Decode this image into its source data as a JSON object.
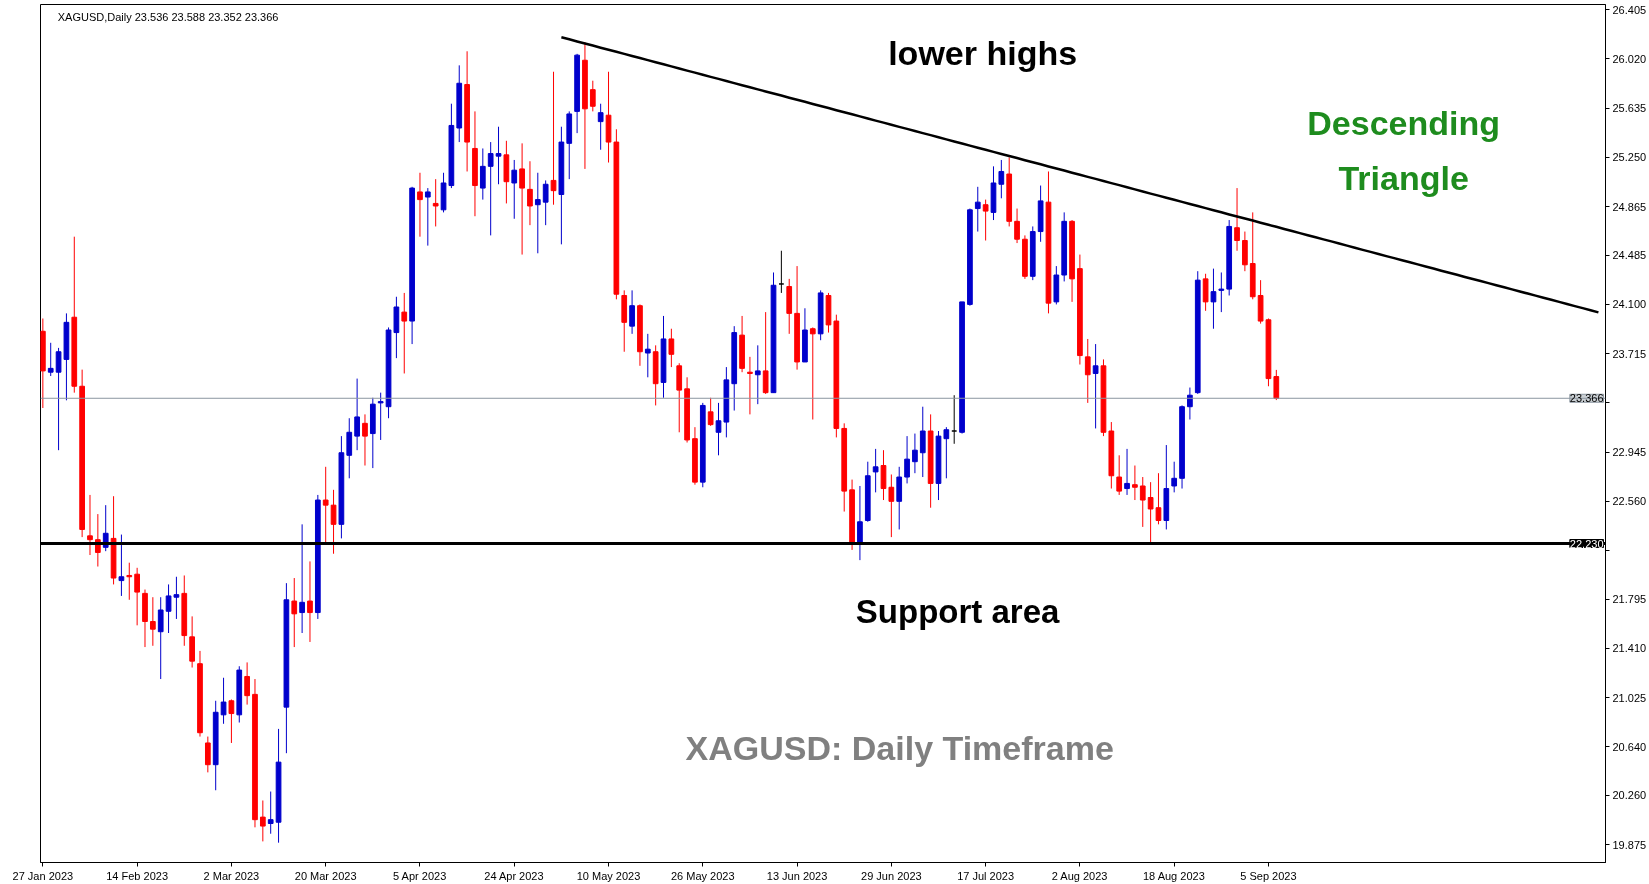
{
  "chart_data": {
    "type": "candlestick",
    "title": "XAGUSD,Daily  23.536 23.588 23.352 23.366",
    "categories": [
      "27 Jan 2023",
      null,
      null,
      null,
      null,
      null,
      null,
      null,
      null,
      null,
      null,
      null,
      "14 Feb 2023",
      null,
      null,
      null,
      null,
      null,
      null,
      null,
      null,
      null,
      null,
      null,
      "2 Mar 2023",
      null,
      null,
      null,
      null,
      null,
      null,
      null,
      null,
      null,
      null,
      null,
      "20 Mar 2023",
      null,
      null,
      null,
      null,
      null,
      null,
      null,
      null,
      null,
      null,
      null,
      "5 Apr 2023",
      null,
      null,
      null,
      null,
      null,
      null,
      null,
      null,
      null,
      null,
      null,
      "24 Apr 2023",
      null,
      null,
      null,
      null,
      null,
      null,
      null,
      null,
      null,
      null,
      null,
      "10 May 2023",
      null,
      null,
      null,
      null,
      null,
      null,
      null,
      null,
      null,
      null,
      null,
      "26 May 2023",
      null,
      null,
      null,
      null,
      null,
      null,
      null,
      null,
      null,
      null,
      null,
      "13 Jun 2023",
      null,
      null,
      null,
      null,
      null,
      null,
      null,
      null,
      null,
      null,
      null,
      "29 Jun 2023",
      null,
      null,
      null,
      null,
      null,
      null,
      null,
      null,
      null,
      null,
      null,
      "17 Jul 2023",
      null,
      null,
      null,
      null,
      null,
      null,
      null,
      null,
      null,
      null,
      null,
      "2 Aug 2023",
      null,
      null,
      null,
      null,
      null,
      null,
      null,
      null,
      null,
      null,
      null,
      "18 Aug 2023",
      null,
      null,
      null,
      null,
      null,
      null,
      null,
      null,
      null,
      null,
      null,
      "5 Sep 2023",
      null,
      null,
      null,
      null,
      null,
      null,
      null,
      null,
      null,
      null,
      null,
      null,
      null,
      null,
      null,
      null,
      null,
      null,
      null,
      null,
      null,
      null,
      null,
      null,
      null,
      null,
      null,
      null,
      null,
      null,
      null,
      null,
      null,
      null,
      null,
      null,
      null,
      null,
      null,
      null,
      null,
      null
    ],
    "ohlc": [
      [
        23.89,
        23.99,
        23.29,
        23.58
      ],
      [
        23.57,
        23.8,
        23.54,
        23.6
      ],
      [
        23.57,
        23.76,
        22.96,
        23.73
      ],
      [
        23.67,
        24.03,
        23.35,
        23.96
      ],
      [
        24.0,
        24.63,
        23.41,
        23.46
      ],
      [
        23.46,
        23.59,
        22.28,
        22.34
      ],
      [
        22.29,
        22.61,
        22.14,
        22.26
      ],
      [
        22.26,
        22.46,
        22.05,
        22.16
      ],
      [
        22.2,
        22.53,
        22.17,
        22.31
      ],
      [
        22.27,
        22.6,
        21.91,
        21.96
      ],
      [
        21.94,
        22.3,
        21.82,
        21.97
      ],
      [
        21.98,
        22.08,
        21.79,
        21.97
      ],
      [
        21.99,
        22.04,
        21.59,
        21.85
      ],
      [
        21.84,
        21.87,
        21.42,
        21.62
      ],
      [
        21.62,
        21.81,
        21.43,
        21.56
      ],
      [
        21.54,
        21.81,
        21.17,
        21.71
      ],
      [
        21.7,
        21.91,
        21.53,
        21.82
      ],
      [
        21.81,
        21.97,
        21.64,
        21.83
      ],
      [
        21.84,
        21.98,
        21.43,
        21.51
      ],
      [
        21.5,
        21.66,
        21.26,
        21.31
      ],
      [
        21.29,
        21.39,
        20.72,
        20.75
      ],
      [
        20.67,
        20.72,
        20.44,
        20.5
      ],
      [
        20.5,
        21.0,
        20.3,
        20.91
      ],
      [
        20.89,
        21.18,
        20.82,
        20.99
      ],
      [
        21.0,
        21.01,
        20.67,
        20.9
      ],
      [
        20.89,
        21.27,
        20.83,
        21.24
      ],
      [
        21.19,
        21.3,
        20.97,
        21.04
      ],
      [
        21.05,
        21.17,
        20.01,
        20.07
      ],
      [
        20.09,
        20.22,
        19.9,
        20.02
      ],
      [
        20.04,
        20.29,
        19.96,
        20.07
      ],
      [
        20.05,
        20.78,
        19.89,
        20.52
      ],
      [
        20.95,
        21.92,
        20.59,
        21.79
      ],
      [
        21.78,
        21.96,
        21.42,
        21.68
      ],
      [
        21.69,
        22.38,
        21.53,
        21.77
      ],
      [
        21.78,
        22.09,
        21.46,
        21.69
      ],
      [
        21.69,
        22.61,
        21.64,
        22.57
      ],
      [
        22.57,
        22.83,
        22.24,
        22.53
      ],
      [
        22.53,
        22.65,
        22.15,
        22.38
      ],
      [
        22.38,
        23.07,
        22.27,
        22.94
      ],
      [
        22.92,
        23.21,
        22.74,
        23.1
      ],
      [
        23.07,
        23.52,
        22.96,
        23.22
      ],
      [
        23.17,
        23.24,
        22.84,
        23.07
      ],
      [
        23.09,
        23.37,
        22.82,
        23.32
      ],
      [
        23.33,
        23.41,
        23.04,
        23.34
      ],
      [
        23.3,
        23.92,
        23.21,
        23.9
      ],
      [
        23.88,
        24.16,
        23.68,
        24.08
      ],
      [
        24.04,
        24.19,
        23.56,
        23.97
      ],
      [
        23.97,
        25.02,
        23.79,
        25.01
      ],
      [
        24.98,
        25.13,
        24.63,
        24.92
      ],
      [
        24.94,
        25.01,
        24.56,
        24.98
      ],
      [
        24.89,
        25.08,
        24.71,
        24.87
      ],
      [
        24.84,
        25.13,
        24.82,
        25.05
      ],
      [
        25.03,
        25.67,
        25.01,
        25.5
      ],
      [
        25.48,
        25.97,
        25.37,
        25.83
      ],
      [
        25.82,
        26.08,
        25.14,
        25.37
      ],
      [
        25.32,
        25.61,
        24.79,
        25.03
      ],
      [
        25.01,
        25.32,
        24.92,
        25.18
      ],
      [
        25.18,
        25.37,
        24.64,
        25.28
      ],
      [
        25.26,
        25.49,
        25.04,
        25.28
      ],
      [
        25.27,
        25.38,
        24.89,
        25.06
      ],
      [
        25.05,
        25.23,
        24.77,
        25.15
      ],
      [
        25.16,
        25.36,
        24.49,
        25.01
      ],
      [
        25.0,
        25.22,
        24.72,
        24.87
      ],
      [
        24.88,
        25.13,
        24.5,
        24.92
      ],
      [
        24.9,
        25.07,
        24.72,
        25.04
      ],
      [
        25.07,
        25.92,
        24.88,
        24.99
      ],
      [
        24.96,
        25.49,
        24.57,
        25.37
      ],
      [
        25.36,
        25.61,
        25.08,
        25.59
      ],
      [
        25.61,
        26.06,
        25.44,
        26.05
      ],
      [
        26.01,
        26.15,
        25.16,
        25.63
      ],
      [
        25.78,
        25.85,
        25.61,
        25.65
      ],
      [
        25.53,
        25.67,
        25.31,
        25.6
      ],
      [
        25.58,
        25.92,
        25.21,
        25.37
      ],
      [
        25.37,
        25.47,
        24.14,
        24.18
      ],
      [
        24.17,
        24.21,
        23.73,
        23.96
      ],
      [
        23.93,
        24.21,
        23.87,
        24.09
      ],
      [
        24.09,
        24.1,
        23.62,
        23.73
      ],
      [
        23.72,
        23.87,
        23.53,
        23.75
      ],
      [
        23.73,
        23.78,
        23.31,
        23.48
      ],
      [
        23.49,
        24.01,
        23.37,
        23.83
      ],
      [
        23.83,
        23.91,
        23.61,
        23.71
      ],
      [
        23.62,
        23.64,
        23.1,
        23.43
      ],
      [
        23.44,
        23.53,
        23.02,
        23.04
      ],
      [
        23.05,
        23.14,
        22.69,
        22.71
      ],
      [
        22.71,
        23.33,
        22.67,
        23.31
      ],
      [
        23.26,
        23.37,
        23.15,
        23.16
      ],
      [
        23.1,
        23.33,
        22.92,
        23.19
      ],
      [
        23.18,
        23.61,
        23.06,
        23.51
      ],
      [
        23.48,
        23.93,
        23.27,
        23.88
      ],
      [
        23.86,
        24.01,
        23.57,
        23.6
      ],
      [
        23.57,
        23.69,
        23.24,
        23.56
      ],
      [
        23.55,
        23.78,
        23.32,
        23.58
      ],
      [
        23.58,
        24.04,
        23.4,
        23.41
      ],
      [
        23.41,
        24.35,
        23.41,
        24.25
      ],
      [
        24.26,
        24.52,
        24.19,
        24.26
      ],
      [
        24.24,
        24.3,
        23.87,
        24.03
      ],
      [
        24.03,
        24.4,
        23.59,
        23.65
      ],
      [
        23.65,
        24.07,
        23.65,
        23.9
      ],
      [
        23.91,
        23.92,
        23.2,
        23.87
      ],
      [
        23.87,
        24.21,
        23.82,
        24.19
      ],
      [
        24.17,
        24.19,
        23.88,
        23.94
      ],
      [
        23.97,
        24.02,
        23.06,
        23.13
      ],
      [
        23.13,
        23.17,
        22.48,
        22.64
      ],
      [
        22.65,
        22.73,
        22.18,
        22.24
      ],
      [
        22.24,
        22.68,
        22.1,
        22.4
      ],
      [
        22.41,
        22.87,
        22.4,
        22.76
      ],
      [
        22.79,
        22.97,
        22.63,
        22.83
      ],
      [
        22.84,
        22.96,
        22.57,
        22.66
      ],
      [
        22.67,
        22.77,
        22.28,
        22.56
      ],
      [
        22.56,
        22.83,
        22.34,
        22.75
      ],
      [
        22.75,
        23.07,
        22.7,
        22.89
      ],
      [
        22.87,
        23.09,
        22.78,
        22.96
      ],
      [
        22.94,
        23.3,
        22.75,
        23.11
      ],
      [
        23.11,
        23.24,
        22.51,
        22.7
      ],
      [
        22.7,
        23.11,
        22.57,
        23.07
      ],
      [
        23.05,
        23.14,
        22.74,
        23.12
      ],
      [
        23.11,
        23.39,
        23.01,
        23.11
      ],
      [
        23.1,
        24.12,
        23.09,
        24.12
      ],
      [
        24.1,
        24.85,
        24.09,
        24.84
      ],
      [
        24.85,
        25.02,
        24.67,
        24.9
      ],
      [
        24.88,
        24.92,
        24.6,
        24.83
      ],
      [
        24.82,
        25.18,
        24.76,
        25.05
      ],
      [
        25.04,
        25.23,
        24.93,
        25.14
      ],
      [
        25.12,
        25.25,
        24.71,
        24.75
      ],
      [
        24.75,
        24.85,
        24.58,
        24.61
      ],
      [
        24.61,
        24.64,
        24.3,
        24.32
      ],
      [
        24.32,
        24.71,
        24.29,
        24.67
      ],
      [
        24.67,
        25.03,
        24.59,
        24.91
      ],
      [
        24.9,
        25.14,
        24.03,
        24.11
      ],
      [
        24.12,
        24.4,
        24.1,
        24.33
      ],
      [
        24.33,
        24.82,
        24.28,
        24.75
      ],
      [
        24.75,
        24.76,
        24.12,
        24.3
      ],
      [
        24.38,
        24.49,
        23.63,
        23.7
      ],
      [
        23.69,
        23.83,
        23.33,
        23.55
      ],
      [
        23.56,
        23.79,
        23.13,
        23.62
      ],
      [
        23.62,
        23.67,
        23.07,
        23.1
      ],
      [
        23.11,
        23.18,
        22.66,
        22.76
      ],
      [
        22.75,
        22.92,
        22.61,
        22.64
      ],
      [
        22.66,
        22.97,
        22.61,
        22.7
      ],
      [
        22.69,
        22.84,
        22.57,
        22.67
      ],
      [
        22.68,
        22.75,
        22.36,
        22.57
      ],
      [
        22.59,
        22.71,
        22.22,
        22.5
      ],
      [
        22.51,
        22.78,
        22.38,
        22.41
      ],
      [
        22.41,
        23.0,
        22.34,
        22.66
      ],
      [
        22.68,
        22.87,
        22.63,
        22.74
      ],
      [
        22.74,
        23.31,
        22.66,
        23.3
      ],
      [
        23.3,
        23.45,
        23.2,
        23.39
      ],
      [
        23.41,
        24.36,
        23.4,
        24.29
      ],
      [
        24.3,
        24.34,
        24.05,
        24.12
      ],
      [
        24.12,
        24.38,
        23.91,
        24.2
      ],
      [
        24.21,
        24.35,
        24.04,
        24.22
      ],
      [
        24.22,
        24.76,
        24.17,
        24.71
      ],
      [
        24.7,
        25.01,
        24.52,
        24.6
      ],
      [
        24.6,
        24.67,
        24.36,
        24.41
      ],
      [
        24.42,
        24.82,
        24.14,
        24.16
      ],
      [
        24.17,
        24.29,
        23.95,
        23.97
      ],
      [
        23.98,
        23.99,
        23.46,
        23.52
      ],
      [
        23.536,
        23.588,
        23.352,
        23.366
      ],
      null,
      null,
      null,
      null,
      null,
      null,
      null,
      null,
      null,
      null,
      null,
      null,
      null,
      null,
      null,
      null,
      null,
      null,
      null,
      null,
      null,
      null,
      null,
      null,
      null,
      null,
      null,
      null,
      null,
      null,
      null,
      null,
      null,
      null,
      null,
      null,
      null,
      null,
      null,
      null,
      null
    ],
    "colors": [
      "#ff0000",
      "#0000cc",
      "#0000cc",
      "#0000cc",
      "#ff0000",
      "#ff0000",
      "#ff0000",
      "#ff0000",
      "#0000cc",
      "#ff0000",
      "#0000cc",
      "#ff0000",
      "#ff0000",
      "#ff0000",
      "#ff0000",
      "#0000cc",
      "#0000cc",
      "#0000cc",
      "#ff0000",
      "#ff0000",
      "#ff0000",
      "#ff0000",
      "#0000cc",
      "#0000cc",
      "#ff0000",
      "#0000cc",
      "#ff0000",
      "#ff0000",
      "#ff0000",
      "#0000cc",
      "#0000cc",
      "#0000cc",
      "#ff0000",
      "#0000cc",
      "#ff0000",
      "#0000cc",
      "#ff0000",
      "#ff0000",
      "#0000cc",
      "#0000cc",
      "#0000cc",
      "#ff0000",
      "#0000cc",
      "#0000cc",
      "#0000cc",
      "#0000cc",
      "#ff0000",
      "#0000cc",
      "#ff0000",
      "#0000cc",
      "#ff0000",
      "#0000cc",
      "#0000cc",
      "#0000cc",
      "#ff0000",
      "#ff0000",
      "#0000cc",
      "#0000cc",
      "#0000cc",
      "#ff0000",
      "#0000cc",
      "#ff0000",
      "#ff0000",
      "#0000cc",
      "#0000cc",
      "#ff0000",
      "#0000cc",
      "#0000cc",
      "#0000cc",
      "#ff0000",
      "#ff0000",
      "#0000cc",
      "#ff0000",
      "#ff0000",
      "#ff0000",
      "#0000cc",
      "#ff0000",
      "#0000cc",
      "#ff0000",
      "#0000cc",
      "#ff0000",
      "#ff0000",
      "#ff0000",
      "#ff0000",
      "#0000cc",
      "#ff0000",
      "#0000cc",
      "#0000cc",
      "#0000cc",
      "#ff0000",
      "#ff0000",
      "#0000cc",
      "#ff0000",
      "#0000cc",
      "#000000",
      "#ff0000",
      "#ff0000",
      "#0000cc",
      "#ff0000",
      "#0000cc",
      "#ff0000",
      "#ff0000",
      "#ff0000",
      "#ff0000",
      "#0000cc",
      "#0000cc",
      "#0000cc",
      "#ff0000",
      "#ff0000",
      "#0000cc",
      "#0000cc",
      "#0000cc",
      "#0000cc",
      "#ff0000",
      "#0000cc",
      "#0000cc",
      "#000000",
      "#0000cc",
      "#0000cc",
      "#0000cc",
      "#ff0000",
      "#0000cc",
      "#0000cc",
      "#ff0000",
      "#ff0000",
      "#ff0000",
      "#0000cc",
      "#0000cc",
      "#ff0000",
      "#0000cc",
      "#0000cc",
      "#ff0000",
      "#ff0000",
      "#ff0000",
      "#0000cc",
      "#ff0000",
      "#ff0000",
      "#ff0000",
      "#0000cc",
      "#ff0000",
      "#ff0000",
      "#ff0000",
      "#ff0000",
      "#0000cc",
      "#0000cc",
      "#0000cc",
      "#0000cc",
      "#0000cc",
      "#ff0000",
      "#0000cc",
      "#0000cc",
      "#0000cc",
      "#ff0000",
      "#ff0000",
      "#ff0000",
      "#ff0000",
      "#ff0000",
      "#ff0000",
      null,
      null,
      null,
      null,
      null,
      null,
      null,
      null,
      null,
      null,
      null,
      null,
      null,
      null,
      null,
      null,
      null,
      null,
      null,
      null,
      null,
      null,
      null,
      null,
      null,
      null,
      null,
      null,
      null,
      null,
      null,
      null,
      null,
      null,
      null,
      null,
      null,
      null,
      null,
      null,
      null
    ],
    "series": [
      {
        "type": "line",
        "color": "#000000",
        "values": [
          null,
          null,
          null,
          null,
          null,
          null,
          null,
          null,
          null,
          null,
          null,
          null,
          null,
          null,
          null,
          null,
          null,
          null,
          null,
          null,
          null,
          null,
          null,
          null,
          null,
          null,
          null,
          null,
          null,
          null,
          null,
          null,
          null,
          null,
          null,
          null,
          null,
          null,
          null,
          null,
          null,
          null,
          null,
          null,
          null,
          null,
          null,
          null,
          null,
          null,
          null,
          null,
          null,
          null,
          null,
          null,
          null,
          null,
          null,
          null,
          null,
          null,
          null,
          null,
          null,
          null,
          26.19,
          26.174,
          26.157,
          26.141,
          26.125,
          26.108,
          26.092,
          26.076,
          26.06,
          26.043,
          26.027,
          26.011,
          25.994,
          25.978,
          25.962,
          25.945,
          25.929,
          25.913,
          25.897,
          25.88,
          25.864,
          25.848,
          25.831,
          25.815,
          25.799,
          25.782,
          25.766,
          25.75,
          25.734,
          25.717,
          25.701,
          25.685,
          25.668,
          25.652,
          25.636,
          25.619,
          25.603,
          25.587,
          25.571,
          25.554,
          25.538,
          25.522,
          25.505,
          25.489,
          25.473,
          25.456,
          25.44,
          25.424,
          25.408,
          25.391,
          25.375,
          25.359,
          25.342,
          25.326,
          25.31,
          25.293,
          25.277,
          25.261,
          25.245,
          25.228,
          25.212,
          25.196,
          25.179,
          25.163,
          25.147,
          25.13,
          25.114,
          25.098,
          25.082,
          25.065,
          25.049,
          25.033,
          25.016,
          25.0,
          24.984,
          24.967,
          24.951,
          24.935,
          24.919,
          24.902,
          24.886,
          24.87,
          24.853,
          24.837,
          24.821,
          24.804,
          24.788,
          24.772,
          24.756,
          24.739,
          24.723,
          24.707,
          24.69,
          24.674,
          24.658,
          24.641,
          24.625,
          24.609,
          24.593,
          24.576,
          24.56,
          24.544,
          24.527,
          24.511,
          24.495,
          24.478,
          24.462,
          24.446,
          24.43,
          24.413,
          24.397,
          24.381,
          24.364,
          24.348,
          24.332,
          24.315,
          24.299,
          24.283,
          24.267,
          24.25,
          24.234,
          24.218,
          24.201,
          24.185,
          24.169,
          24.152,
          24.136,
          24.12,
          24.104,
          24.087,
          24.071,
          24.055,
          24.038
        ]
      }
    ],
    "ylim": [
      19.735,
      26.446
    ],
    "yticks": [
      {
        "value": 26.405,
        "label": "26.405"
      },
      {
        "value": 26.02,
        "label": "26.020"
      },
      {
        "value": 25.635,
        "label": "25.635"
      },
      {
        "value": 25.25,
        "label": "25.250"
      },
      {
        "value": 24.865,
        "label": "24.865"
      },
      {
        "value": 24.485,
        "label": "24.485"
      },
      {
        "value": 24.1,
        "label": "24.100"
      },
      {
        "value": 23.715,
        "label": "23.715"
      },
      {
        "value": 23.33,
        "label": null
      },
      {
        "value": 22.945,
        "label": "22.945"
      },
      {
        "value": 22.56,
        "label": "22.560"
      },
      {
        "value": 22.175,
        "label": null
      },
      {
        "value": 21.795,
        "label": "21.795"
      },
      {
        "value": 21.41,
        "label": "21.410"
      },
      {
        "value": 21.025,
        "label": "21.025"
      },
      {
        "value": 20.64,
        "label": "20.640"
      },
      {
        "value": 20.26,
        "label": "20.260"
      },
      {
        "value": 19.875,
        "label": "19.875"
      }
    ],
    "ref_lines": [
      {
        "axis": "y",
        "value": 23.366,
        "label": "23.366",
        "color": "#8c96a0"
      },
      {
        "axis": "y",
        "value": 22.23,
        "label": "22.230",
        "color": "#000000"
      }
    ],
    "annotations": [
      "lower highs",
      "Descending\nTriangle",
      "Support area",
      "XAGUSD: Daily Timeframe"
    ]
  }
}
